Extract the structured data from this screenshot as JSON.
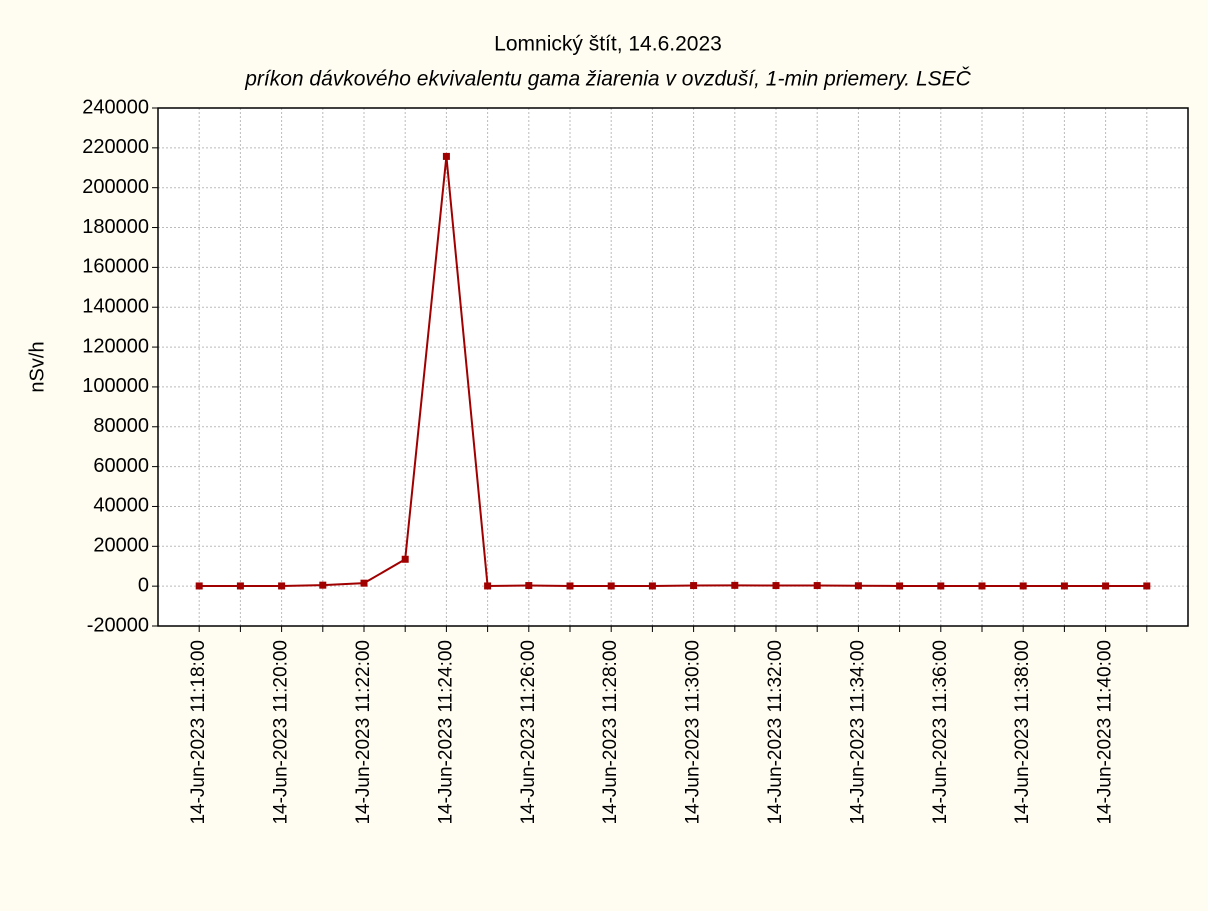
{
  "chart_data": {
    "type": "line",
    "title": "Lomnický štít, 14.6.2023",
    "subtitle": "príkon dávkového ekvivalentu gama žiarenia v ovzduší, 1-min priemery. LSEČ",
    "y_label": "nSv/h",
    "categories": [
      "14-Jun-2023 11:18:00",
      null,
      "14-Jun-2023 11:20:00",
      null,
      "14-Jun-2023 11:22:00",
      null,
      "14-Jun-2023 11:24:00",
      null,
      "14-Jun-2023 11:26:00",
      null,
      "14-Jun-2023 11:28:00",
      null,
      "14-Jun-2023 11:30:00",
      null,
      "14-Jun-2023 11:32:00",
      null,
      "14-Jun-2023 11:34:00",
      null,
      "14-Jun-2023 11:36:00",
      null,
      "14-Jun-2023 11:38:00",
      null,
      "14-Jun-2023 11:40:00",
      null
    ],
    "values": [
      100,
      100,
      100,
      500,
      1500,
      13500,
      215700,
      100,
      300,
      100,
      100,
      100,
      300,
      400,
      300,
      300,
      200,
      100,
      100,
      100,
      100,
      100,
      100,
      100
    ],
    "color": "#a00000",
    "ylim": [
      -20000,
      240000
    ],
    "yticks": [
      -20000,
      0,
      20000,
      40000,
      60000,
      80000,
      100000,
      120000,
      140000,
      160000,
      180000,
      200000,
      220000,
      240000
    ],
    "grid": true
  }
}
